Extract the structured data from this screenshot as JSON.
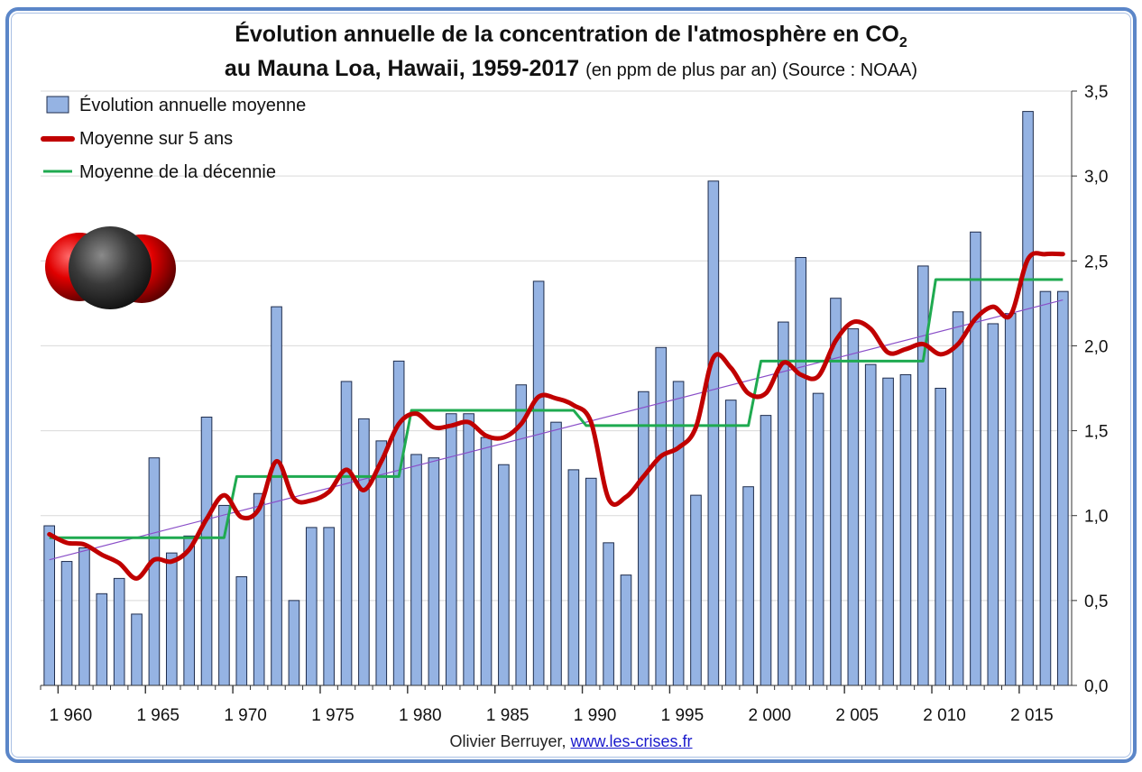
{
  "title": {
    "main": "Évolution annuelle de la concentration de l'atmosphère en CO",
    "main_subscript": "2",
    "line2": "au Mauna Loa, Hawaii, 1959-2017",
    "line2_suffix": "(en ppm de plus par an) (Source : NOAA)"
  },
  "legend": {
    "bars": "Évolution annuelle moyenne",
    "avg5": "Moyenne sur 5 ans",
    "decade": "Moyenne de la décennie"
  },
  "credit": {
    "author": "Olivier Berruyer,",
    "link": "www.les-crises.fr"
  },
  "colors": {
    "bar_fill": "#95b3e3",
    "bar_stroke": "#1f2d4d",
    "avg5": "#c00000",
    "decade": "#1faa50",
    "trend": "#8a4fc8",
    "frame": "#5b86c8"
  },
  "chart_data": {
    "type": "bar",
    "title": "Évolution annuelle de la concentration de l'atmosphère en CO2 au Mauna Loa, Hawaii, 1959-2017",
    "xlabel": "",
    "ylabel": "ppm de plus par an",
    "ylim": [
      0,
      3.5
    ],
    "y_ticks": [
      "0,0",
      "0,5",
      "1,0",
      "1,5",
      "2,0",
      "2,5",
      "3,0",
      "3,5"
    ],
    "x_ticks": [
      "1 960",
      "1 965",
      "1 970",
      "1 975",
      "1 980",
      "1 985",
      "1 990",
      "1 995",
      "2 000",
      "2 005",
      "2 010",
      "2 015"
    ],
    "y_axis_position": "right",
    "legend_position": "top-left",
    "grid": true,
    "years": [
      1959,
      1960,
      1961,
      1962,
      1963,
      1964,
      1965,
      1966,
      1967,
      1968,
      1969,
      1970,
      1971,
      1972,
      1973,
      1974,
      1975,
      1976,
      1977,
      1978,
      1979,
      1980,
      1981,
      1982,
      1983,
      1984,
      1985,
      1986,
      1987,
      1988,
      1989,
      1990,
      1991,
      1992,
      1993,
      1994,
      1995,
      1996,
      1997,
      1998,
      1999,
      2000,
      2001,
      2002,
      2003,
      2004,
      2005,
      2006,
      2007,
      2008,
      2009,
      2010,
      2011,
      2012,
      2013,
      2014,
      2015,
      2016,
      2017
    ],
    "series": [
      {
        "name": "Évolution annuelle moyenne",
        "type": "bar",
        "values": [
          0.94,
          0.73,
          0.81,
          0.54,
          0.63,
          0.42,
          1.34,
          0.78,
          0.88,
          1.58,
          1.06,
          0.64,
          1.13,
          2.23,
          0.5,
          0.93,
          0.93,
          1.79,
          1.57,
          1.44,
          1.91,
          1.36,
          1.34,
          1.6,
          1.6,
          1.46,
          1.3,
          1.77,
          2.38,
          1.55,
          1.27,
          1.22,
          0.84,
          0.65,
          1.73,
          1.99,
          1.79,
          1.12,
          2.97,
          1.68,
          1.17,
          1.59,
          2.14,
          2.52,
          1.72,
          2.28,
          2.1,
          1.89,
          1.81,
          1.83,
          2.47,
          1.75,
          2.2,
          2.67,
          2.13,
          2.19,
          3.38,
          2.32,
          2.32
        ]
      },
      {
        "name": "Moyenne sur 5 ans",
        "type": "line",
        "values": [
          0.89,
          0.84,
          0.83,
          0.77,
          0.72,
          0.63,
          0.74,
          0.73,
          0.8,
          0.98,
          1.12,
          0.99,
          1.04,
          1.32,
          1.1,
          1.09,
          1.14,
          1.27,
          1.15,
          1.32,
          1.54,
          1.6,
          1.52,
          1.53,
          1.55,
          1.47,
          1.46,
          1.54,
          1.7,
          1.69,
          1.65,
          1.55,
          1.1,
          1.11,
          1.23,
          1.35,
          1.4,
          1.52,
          1.93,
          1.87,
          1.72,
          1.72,
          1.9,
          1.83,
          1.82,
          2.03,
          2.14,
          2.1,
          1.96,
          1.98,
          2.01,
          1.95,
          2.01,
          2.16,
          2.23,
          2.18,
          2.51,
          2.54,
          2.54
        ]
      },
      {
        "name": "Moyenne de la décennie",
        "type": "step",
        "segments": [
          {
            "from": 1959,
            "to": 1969,
            "value": 0.87
          },
          {
            "from": 1969,
            "to": 1979,
            "value": 1.23
          },
          {
            "from": 1979,
            "to": 1989,
            "value": 1.62
          },
          {
            "from": 1989,
            "to": 1999,
            "value": 1.53
          },
          {
            "from": 1999,
            "to": 2009,
            "value": 1.91
          },
          {
            "from": 2009,
            "to": 2017,
            "value": 2.39
          }
        ]
      },
      {
        "name": "Tendance linéaire",
        "type": "trend",
        "start": {
          "year": 1959,
          "value": 0.74
        },
        "end": {
          "year": 2017,
          "value": 2.27
        }
      }
    ]
  }
}
